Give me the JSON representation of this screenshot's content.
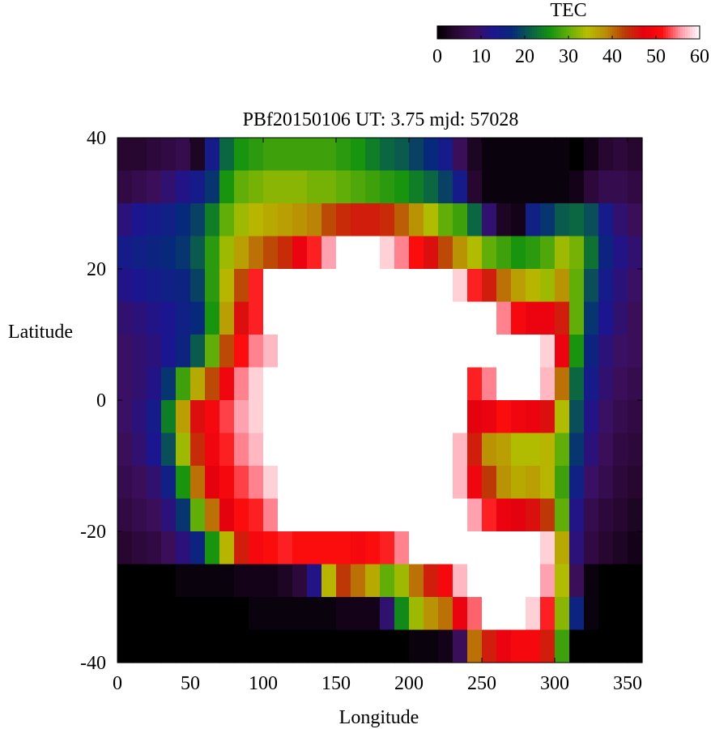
{
  "chart_data": {
    "type": "heatmap",
    "title": "PBf20150106  UT: 3.75  mjd: 57028",
    "xlabel": "Longitude",
    "ylabel": "Latitude",
    "xlim": [
      0,
      360
    ],
    "ylim": [
      -40,
      40
    ],
    "x_ticks": [
      "0",
      "50",
      "100",
      "150",
      "200",
      "250",
      "300",
      "350"
    ],
    "y_ticks": [
      "40",
      "20",
      "0",
      "-20",
      "-40"
    ],
    "colorbar": {
      "label": "TEC",
      "range": [
        0,
        60
      ],
      "ticks": [
        "0",
        "10",
        "20",
        "30",
        "40",
        "50",
        "60"
      ],
      "colors": [
        "#000000",
        "#2a0733",
        "#3c0f5e",
        "#1c1590",
        "#062a7a",
        "#0a6048",
        "#149210",
        "#62ae08",
        "#b7bd00",
        "#ba8c06",
        "#bc3a06",
        "#e6000f",
        "#fd0d0d",
        "#ff9aa8",
        "#ffffff"
      ]
    },
    "lon_centers": [
      5,
      15,
      25,
      35,
      45,
      55,
      65,
      75,
      85,
      95,
      105,
      115,
      125,
      135,
      145,
      155,
      165,
      175,
      185,
      195,
      205,
      215,
      225,
      235,
      245,
      255,
      265,
      275,
      285,
      295,
      305,
      315,
      325,
      335,
      345,
      355
    ],
    "lat_centers": [
      37.5,
      32.5,
      27.5,
      22.5,
      17.5,
      12.5,
      7.5,
      2.5,
      -2.5,
      -7.5,
      -12.5,
      -17.5,
      -22.5,
      -27.5,
      -32.5,
      -37.5
    ],
    "values_tec": [
      [
        4,
        4,
        5,
        6,
        7,
        3,
        14,
        22,
        26,
        27,
        28,
        28,
        28,
        28,
        28,
        27,
        26,
        24,
        22,
        21,
        19,
        17,
        14,
        8,
        3,
        1,
        1,
        1,
        1,
        1,
        1,
        0,
        2,
        4,
        5,
        4
      ],
      [
        6,
        7,
        8,
        10,
        12,
        14,
        18,
        26,
        30,
        31,
        32,
        32,
        32,
        31,
        31,
        30,
        29,
        28,
        27,
        26,
        24,
        22,
        19,
        14,
        4,
        1,
        1,
        1,
        1,
        1,
        1,
        2,
        5,
        7,
        7,
        6
      ],
      [
        11,
        13,
        14,
        15,
        17,
        19,
        24,
        30,
        33,
        35,
        36,
        37,
        38,
        39,
        42,
        44,
        45,
        45,
        44,
        41,
        38,
        34,
        30,
        28,
        22,
        10,
        3,
        2,
        15,
        18,
        21,
        22,
        20,
        14,
        10,
        8
      ],
      [
        14,
        15,
        16,
        17,
        18,
        21,
        27,
        33,
        37,
        40,
        42,
        44,
        48,
        52,
        56,
        60,
        60,
        60,
        58,
        55,
        51,
        46,
        42,
        38,
        34,
        30,
        28,
        26,
        27,
        29,
        33,
        31,
        23,
        16,
        12,
        10
      ],
      [
        12,
        13,
        14,
        15,
        16,
        19,
        27,
        35,
        42,
        52,
        60,
        60,
        60,
        60,
        60,
        60,
        60,
        60,
        60,
        60,
        60,
        60,
        60,
        58,
        52,
        45,
        40,
        37,
        35,
        33,
        38,
        30,
        20,
        14,
        11,
        9
      ],
      [
        10,
        11,
        12,
        13,
        15,
        17,
        26,
        37,
        46,
        52,
        60,
        60,
        60,
        60,
        60,
        60,
        60,
        60,
        60,
        60,
        60,
        60,
        60,
        60,
        60,
        60,
        55,
        50,
        48,
        48,
        45,
        30,
        18,
        13,
        10,
        8
      ],
      [
        9,
        10,
        11,
        13,
        16,
        21,
        30,
        42,
        51,
        55,
        57,
        60,
        60,
        60,
        60,
        60,
        60,
        60,
        60,
        60,
        60,
        60,
        60,
        60,
        60,
        60,
        60,
        60,
        60,
        58,
        48,
        26,
        16,
        11,
        9,
        8
      ],
      [
        9,
        10,
        12,
        18,
        28,
        36,
        42,
        49,
        55,
        58,
        60,
        60,
        60,
        60,
        60,
        60,
        60,
        60,
        60,
        60,
        60,
        60,
        60,
        60,
        52,
        55,
        60,
        60,
        60,
        57,
        40,
        22,
        14,
        10,
        8,
        7
      ],
      [
        9,
        11,
        14,
        24,
        37,
        46,
        50,
        53,
        56,
        58,
        60,
        60,
        60,
        60,
        60,
        60,
        60,
        60,
        60,
        60,
        60,
        60,
        60,
        60,
        47,
        48,
        51,
        49,
        48,
        46,
        34,
        20,
        12,
        9,
        7,
        6
      ],
      [
        8,
        10,
        13,
        20,
        33,
        44,
        49,
        52,
        55,
        57,
        60,
        60,
        60,
        60,
        60,
        60,
        60,
        60,
        60,
        60,
        60,
        60,
        60,
        57,
        45,
        38,
        37,
        34,
        34,
        35,
        30,
        18,
        11,
        8,
        6,
        5
      ],
      [
        7,
        8,
        10,
        15,
        26,
        40,
        47,
        50,
        53,
        55,
        58,
        60,
        60,
        60,
        60,
        60,
        60,
        60,
        60,
        60,
        60,
        60,
        60,
        57,
        49,
        43,
        38,
        36,
        37,
        35,
        28,
        15,
        9,
        7,
        5,
        4
      ],
      [
        6,
        7,
        8,
        11,
        18,
        30,
        40,
        47,
        51,
        52,
        55,
        60,
        60,
        60,
        60,
        60,
        60,
        60,
        60,
        60,
        60,
        60,
        60,
        60,
        56,
        52,
        48,
        47,
        46,
        43,
        30,
        12,
        7,
        5,
        4,
        3
      ],
      [
        4,
        5,
        6,
        8,
        11,
        16,
        26,
        35,
        45,
        50,
        51,
        52,
        51,
        51,
        51,
        51,
        50,
        51,
        52,
        55,
        60,
        60,
        60,
        60,
        60,
        60,
        60,
        60,
        60,
        58,
        36,
        11,
        6,
        4,
        3,
        2
      ],
      [
        0,
        0,
        0,
        0,
        1,
        1,
        1,
        1,
        2,
        2,
        2,
        3,
        5,
        12,
        35,
        43,
        40,
        36,
        30,
        33,
        40,
        45,
        50,
        57,
        60,
        60,
        60,
        60,
        60,
        56,
        34,
        8,
        1,
        0,
        0,
        0
      ],
      [
        0,
        0,
        0,
        0,
        0,
        0,
        0,
        0,
        0,
        1,
        1,
        1,
        1,
        1,
        1,
        2,
        2,
        2,
        10,
        25,
        33,
        38,
        40,
        48,
        54,
        60,
        60,
        60,
        58,
        52,
        32,
        16,
        1,
        0,
        0,
        0
      ],
      [
        0,
        0,
        0,
        0,
        0,
        0,
        0,
        0,
        0,
        0,
        0,
        0,
        0,
        0,
        0,
        0,
        0,
        0,
        0,
        0,
        1,
        1,
        2,
        8,
        40,
        45,
        48,
        50,
        50,
        45,
        28,
        0,
        0,
        0,
        0,
        0
      ]
    ]
  }
}
